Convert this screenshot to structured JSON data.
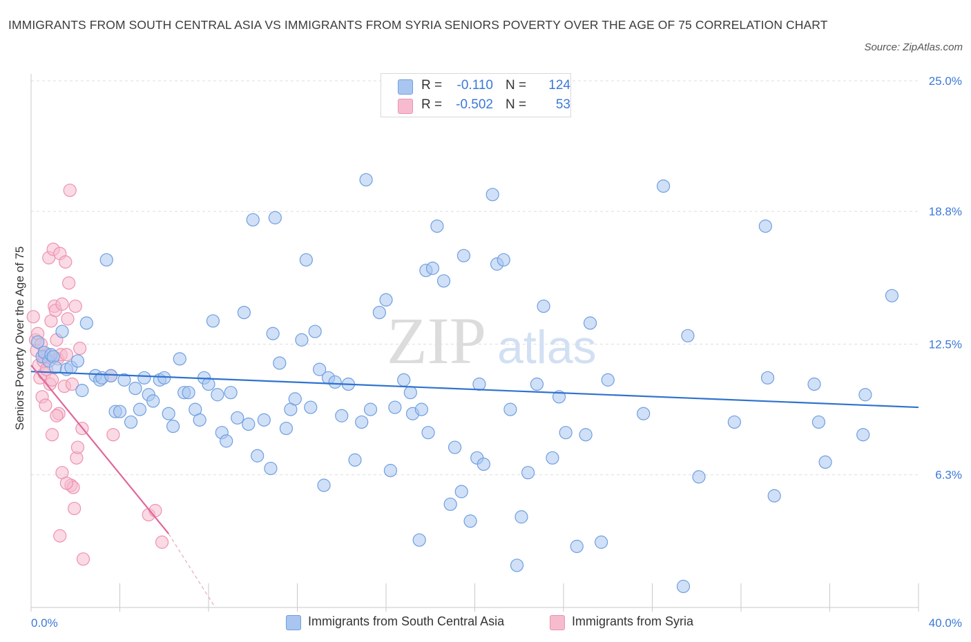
{
  "title": "IMMIGRANTS FROM SOUTH CENTRAL ASIA VS IMMIGRANTS FROM SYRIA SENIORS POVERTY OVER THE AGE OF 75 CORRELATION CHART",
  "source": "Source: ZipAtlas.com",
  "watermark": {
    "zip": "ZIP",
    "atlas": "atlas"
  },
  "legend": {
    "rows": [
      {
        "r_label": "R =",
        "r_value": "-0.110",
        "n_label": "N =",
        "n_value": "124"
      },
      {
        "r_label": "R =",
        "r_value": "-0.502",
        "n_label": "N =",
        "n_value": "53"
      }
    ]
  },
  "colors": {
    "blue_fill": "#a9c6f0",
    "blue_stroke": "#6f9ee0",
    "blue_line": "#2f72cf",
    "pink_fill": "#f6bccd",
    "pink_stroke": "#ee91ae",
    "pink_line": "#e0669a",
    "axis_text": "#3a78d8",
    "grid": "#dddddd"
  },
  "chart_data": {
    "type": "scatter",
    "title": "IMMIGRANTS FROM SOUTH CENTRAL ASIA VS IMMIGRANTS FROM SYRIA SENIORS POVERTY OVER THE AGE OF 75 CORRELATION CHART",
    "xlabel": "",
    "ylabel": "Seniors Poverty Over the Age of 75",
    "xlim": [
      0,
      40
    ],
    "ylim": [
      0,
      25
    ],
    "x_tick_labels": [
      {
        "value": 0,
        "label": "0.0%"
      },
      {
        "value": 40,
        "label": "40.0%"
      }
    ],
    "y_tick_labels": [
      {
        "value": 6.3,
        "label": "6.3%"
      },
      {
        "value": 12.5,
        "label": "12.5%"
      },
      {
        "value": 18.8,
        "label": "18.8%"
      },
      {
        "value": 25.0,
        "label": "25.0%"
      }
    ],
    "grid": true,
    "legend_position": "top-center",
    "series": [
      {
        "name": "Immigrants from South Central Asia",
        "color": "#a9c6f0",
        "trend": {
          "x": [
            0,
            40
          ],
          "y": [
            11.2,
            9.5
          ]
        },
        "points": [
          [
            0.3,
            12.6
          ],
          [
            0.5,
            11.9
          ],
          [
            0.6,
            12.1
          ],
          [
            0.8,
            11.7
          ],
          [
            0.9,
            12.0
          ],
          [
            1.0,
            11.9
          ],
          [
            1.1,
            11.4
          ],
          [
            1.4,
            13.1
          ],
          [
            1.6,
            11.3
          ],
          [
            1.8,
            11.4
          ],
          [
            2.1,
            11.7
          ],
          [
            2.3,
            10.3
          ],
          [
            2.5,
            13.5
          ],
          [
            2.9,
            11.0
          ],
          [
            3.1,
            10.8
          ],
          [
            3.2,
            10.9
          ],
          [
            3.4,
            16.5
          ],
          [
            3.6,
            11.0
          ],
          [
            3.8,
            9.3
          ],
          [
            4.0,
            9.3
          ],
          [
            4.2,
            10.8
          ],
          [
            4.5,
            8.8
          ],
          [
            4.7,
            10.4
          ],
          [
            4.9,
            9.4
          ],
          [
            5.1,
            10.9
          ],
          [
            5.3,
            10.1
          ],
          [
            5.5,
            9.8
          ],
          [
            5.8,
            10.8
          ],
          [
            6.0,
            10.9
          ],
          [
            6.2,
            9.2
          ],
          [
            6.4,
            8.6
          ],
          [
            6.7,
            11.8
          ],
          [
            6.9,
            10.2
          ],
          [
            7.1,
            10.2
          ],
          [
            7.4,
            9.4
          ],
          [
            7.6,
            8.9
          ],
          [
            7.8,
            10.9
          ],
          [
            8.0,
            10.6
          ],
          [
            8.2,
            13.6
          ],
          [
            8.4,
            10.1
          ],
          [
            8.6,
            8.3
          ],
          [
            8.8,
            7.9
          ],
          [
            9.0,
            10.2
          ],
          [
            9.3,
            9.0
          ],
          [
            9.6,
            14.0
          ],
          [
            9.8,
            8.7
          ],
          [
            10.0,
            18.4
          ],
          [
            10.2,
            7.2
          ],
          [
            10.5,
            8.9
          ],
          [
            10.8,
            6.6
          ],
          [
            10.9,
            13.0
          ],
          [
            11.0,
            18.5
          ],
          [
            11.2,
            11.6
          ],
          [
            11.5,
            8.5
          ],
          [
            11.7,
            9.4
          ],
          [
            11.9,
            9.9
          ],
          [
            12.2,
            12.7
          ],
          [
            12.4,
            16.5
          ],
          [
            12.6,
            9.5
          ],
          [
            12.8,
            13.1
          ],
          [
            13.0,
            11.3
          ],
          [
            13.2,
            5.8
          ],
          [
            13.4,
            10.9
          ],
          [
            13.7,
            10.7
          ],
          [
            14.0,
            9.1
          ],
          [
            14.3,
            10.6
          ],
          [
            14.6,
            7.0
          ],
          [
            14.9,
            8.8
          ],
          [
            15.1,
            20.3
          ],
          [
            15.3,
            9.4
          ],
          [
            15.7,
            14.0
          ],
          [
            16.0,
            14.6
          ],
          [
            16.2,
            6.5
          ],
          [
            16.4,
            9.5
          ],
          [
            16.8,
            10.8
          ],
          [
            17.1,
            10.2
          ],
          [
            17.2,
            9.2
          ],
          [
            17.5,
            3.2
          ],
          [
            17.6,
            9.4
          ],
          [
            17.8,
            16.0
          ],
          [
            17.9,
            8.3
          ],
          [
            18.1,
            16.1
          ],
          [
            18.3,
            18.1
          ],
          [
            18.6,
            15.5
          ],
          [
            18.9,
            4.9
          ],
          [
            19.1,
            7.6
          ],
          [
            19.4,
            5.5
          ],
          [
            19.5,
            16.7
          ],
          [
            19.8,
            4.1
          ],
          [
            20.1,
            7.1
          ],
          [
            20.2,
            10.6
          ],
          [
            20.4,
            6.8
          ],
          [
            20.8,
            19.6
          ],
          [
            21.0,
            16.3
          ],
          [
            21.3,
            16.5
          ],
          [
            21.6,
            9.4
          ],
          [
            21.9,
            2.0
          ],
          [
            22.1,
            4.3
          ],
          [
            22.4,
            6.4
          ],
          [
            22.8,
            10.6
          ],
          [
            23.1,
            14.3
          ],
          [
            23.5,
            7.1
          ],
          [
            23.8,
            10.0
          ],
          [
            24.1,
            8.3
          ],
          [
            24.6,
            2.9
          ],
          [
            25.0,
            8.2
          ],
          [
            25.2,
            13.5
          ],
          [
            25.7,
            3.1
          ],
          [
            26.0,
            10.8
          ],
          [
            27.6,
            9.2
          ],
          [
            28.5,
            20.0
          ],
          [
            29.4,
            1.0
          ],
          [
            29.6,
            12.9
          ],
          [
            30.1,
            6.2
          ],
          [
            31.7,
            8.8
          ],
          [
            33.1,
            18.1
          ],
          [
            33.2,
            10.9
          ],
          [
            33.5,
            5.3
          ],
          [
            35.3,
            10.6
          ],
          [
            35.5,
            8.8
          ],
          [
            35.8,
            6.9
          ],
          [
            37.6,
            10.1
          ],
          [
            37.5,
            8.2
          ],
          [
            38.8,
            14.8
          ]
        ]
      },
      {
        "name": "Immigrants from Syria",
        "color": "#f6bccd",
        "trend": {
          "x": [
            0,
            6.2
          ],
          "y": [
            11.5,
            3.5
          ]
        },
        "trend_dashed": {
          "x": [
            6.2,
            8.3
          ],
          "y": [
            3.5,
            0.0
          ]
        },
        "points": [
          [
            0.1,
            13.8
          ],
          [
            0.2,
            12.7
          ],
          [
            0.25,
            12.2
          ],
          [
            0.3,
            13.0
          ],
          [
            0.35,
            11.5
          ],
          [
            0.4,
            10.9
          ],
          [
            0.45,
            12.5
          ],
          [
            0.5,
            10.0
          ],
          [
            0.55,
            11.7
          ],
          [
            0.6,
            11.1
          ],
          [
            0.65,
            9.6
          ],
          [
            0.7,
            11.3
          ],
          [
            0.75,
            12.0
          ],
          [
            0.8,
            16.6
          ],
          [
            0.85,
            10.6
          ],
          [
            0.9,
            13.6
          ],
          [
            0.95,
            10.8
          ],
          [
            0.95,
            8.2
          ],
          [
            1.0,
            17.0
          ],
          [
            1.05,
            14.3
          ],
          [
            1.1,
            14.1
          ],
          [
            1.15,
            12.7
          ],
          [
            1.2,
            11.8
          ],
          [
            1.25,
            9.2
          ],
          [
            1.3,
            16.8
          ],
          [
            1.35,
            12.0
          ],
          [
            1.4,
            14.4
          ],
          [
            1.5,
            10.5
          ],
          [
            1.55,
            16.4
          ],
          [
            1.6,
            12.0
          ],
          [
            1.65,
            13.7
          ],
          [
            1.7,
            15.4
          ],
          [
            1.75,
            19.8
          ],
          [
            1.8,
            5.8
          ],
          [
            1.85,
            10.6
          ],
          [
            1.9,
            5.7
          ],
          [
            1.95,
            4.7
          ],
          [
            2.0,
            14.3
          ],
          [
            2.05,
            7.1
          ],
          [
            2.1,
            7.6
          ],
          [
            2.2,
            12.3
          ],
          [
            2.3,
            8.5
          ],
          [
            2.35,
            2.3
          ],
          [
            1.4,
            6.4
          ],
          [
            1.6,
            5.9
          ],
          [
            1.3,
            3.4
          ],
          [
            1.15,
            9.1
          ],
          [
            3.6,
            11.0
          ],
          [
            3.7,
            8.2
          ],
          [
            5.3,
            4.4
          ],
          [
            5.6,
            4.6
          ],
          [
            5.9,
            3.1
          ],
          [
            0.6,
            11.9
          ]
        ]
      }
    ]
  },
  "x_axis_left_label": "0.0%",
  "x_axis_right_label": "40.0%",
  "bottom_legend": [
    {
      "label": "Immigrants from South Central Asia"
    },
    {
      "label": "Immigrants from Syria"
    }
  ]
}
